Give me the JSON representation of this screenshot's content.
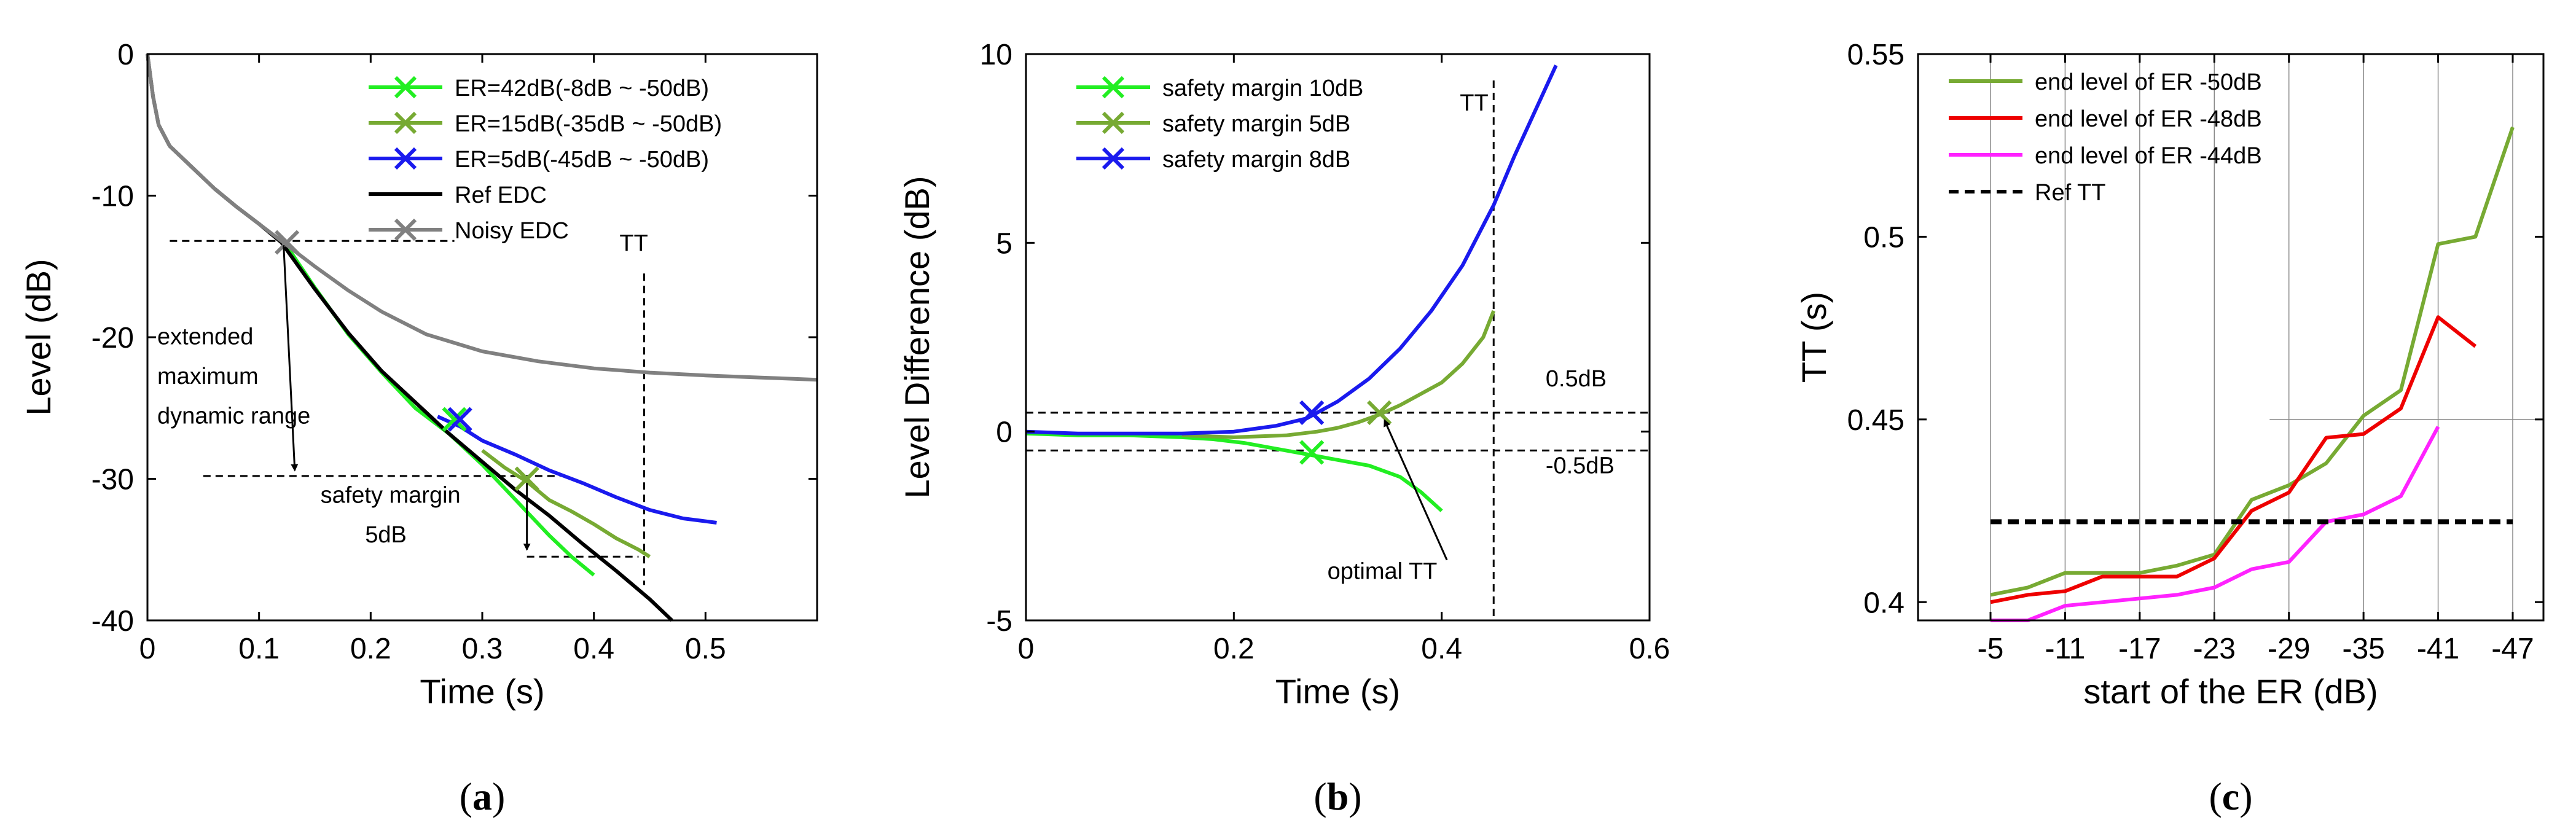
{
  "chart_data": [
    {
      "panel": "(a)",
      "panel_letter": "a",
      "type": "line",
      "xlabel": "Time (s)",
      "ylabel": "Level (dB)",
      "xlim": [
        0,
        0.6
      ],
      "ylim": [
        -40,
        0
      ],
      "xticks": [
        "0",
        "0.1",
        "0.2",
        "0.3",
        "0.4",
        "0.5"
      ],
      "xtick_values": [
        0,
        0.1,
        0.2,
        0.3,
        0.4,
        0.5
      ],
      "yticks": [
        "0",
        "-10",
        "-20",
        "-30",
        "-40"
      ],
      "ytick_values": [
        0,
        -10,
        -20,
        -30,
        -40
      ],
      "legend_position": "top-right",
      "series": [
        {
          "name": "ER=42dB(-8dB ~ -50dB)",
          "color": "#22ee22",
          "marker": "x",
          "x": [
            0.12,
            0.15,
            0.18,
            0.21,
            0.24,
            0.27,
            0.3,
            0.33,
            0.36,
            0.38,
            0.4
          ],
          "y": [
            -13,
            -16.5,
            -19.8,
            -22.5,
            -25,
            -26.8,
            -29,
            -31.5,
            -34,
            -35.5,
            -36.8
          ],
          "marker_at": [
            0.275,
            -25.8
          ]
        },
        {
          "name": "ER=15dB(-35dB ~ -50dB)",
          "color": "#77aa33",
          "marker": "x",
          "x": [
            0.3,
            0.32,
            0.34,
            0.36,
            0.38,
            0.4,
            0.42,
            0.44,
            0.45
          ],
          "y": [
            -28,
            -29.2,
            -30.2,
            -31.5,
            -32.3,
            -33.2,
            -34.2,
            -35,
            -35.5
          ],
          "marker_at": [
            0.34,
            -30
          ]
        },
        {
          "name": "ER=5dB(-45dB ~ -50dB)",
          "color": "#1a1aee",
          "marker": "x",
          "x": [
            0.26,
            0.28,
            0.3,
            0.33,
            0.36,
            0.39,
            0.42,
            0.45,
            0.48,
            0.5,
            0.51
          ],
          "y": [
            -25.6,
            -26.3,
            -27.3,
            -28.3,
            -29.4,
            -30.3,
            -31.3,
            -32.2,
            -32.8,
            -33,
            -33.1
          ],
          "marker_at": [
            0.28,
            -25.8
          ]
        },
        {
          "name": "Ref EDC",
          "color": "#000000",
          "marker": "",
          "x": [
            0,
            0.005,
            0.01,
            0.02,
            0.04,
            0.06,
            0.08,
            0.1,
            0.12,
            0.15,
            0.18,
            0.21,
            0.24,
            0.27,
            0.3,
            0.33,
            0.36,
            0.39,
            0.42,
            0.45,
            0.47
          ],
          "y": [
            0,
            -3,
            -5,
            -6.5,
            -8,
            -9.5,
            -10.8,
            -12,
            -13.3,
            -16.6,
            -19.7,
            -22.4,
            -24.6,
            -26.8,
            -28.8,
            -30.8,
            -32.6,
            -34.6,
            -36.5,
            -38.5,
            -40
          ]
        },
        {
          "name": "Noisy EDC",
          "color": "#808080",
          "marker": "x",
          "x": [
            0,
            0.005,
            0.01,
            0.02,
            0.04,
            0.06,
            0.08,
            0.1,
            0.12,
            0.15,
            0.18,
            0.21,
            0.25,
            0.3,
            0.35,
            0.4,
            0.45,
            0.5,
            0.55,
            0.6
          ],
          "y": [
            0,
            -3,
            -5,
            -6.5,
            -8,
            -9.5,
            -10.8,
            -12,
            -13.2,
            -15,
            -16.7,
            -18.2,
            -19.8,
            -21,
            -21.7,
            -22.2,
            -22.5,
            -22.7,
            -22.85,
            -23
          ],
          "marker_at": [
            0.125,
            -13.3
          ]
        }
      ],
      "annotations": {
        "tt_label": "TT",
        "range_label_1": "extended",
        "range_label_2": "maximum",
        "range_label_3": "dynamic range",
        "safety_label_1": "safety margin",
        "safety_label_2": "5dB"
      }
    },
    {
      "panel": "(b)",
      "panel_letter": "b",
      "type": "line",
      "xlabel": "Time (s)",
      "ylabel": "Level Difference (dB)",
      "xlim": [
        0,
        0.6
      ],
      "ylim": [
        -5,
        10
      ],
      "xticks": [
        "0",
        "0.2",
        "0.4",
        "0.6"
      ],
      "xtick_values": [
        0,
        0.2,
        0.4,
        0.6
      ],
      "yticks": [
        "10",
        "5",
        "0",
        "-5"
      ],
      "ytick_values": [
        10,
        5,
        0,
        -5
      ],
      "legend_position": "top-left",
      "series": [
        {
          "name": "safety margin 10dB",
          "color": "#22ee22",
          "marker": "x",
          "x": [
            0,
            0.05,
            0.1,
            0.15,
            0.18,
            0.21,
            0.24,
            0.27,
            0.3,
            0.33,
            0.36,
            0.38,
            0.4
          ],
          "y": [
            -0.05,
            -0.1,
            -0.1,
            -0.15,
            -0.2,
            -0.3,
            -0.45,
            -0.6,
            -0.75,
            -0.9,
            -1.2,
            -1.6,
            -2.1
          ],
          "marker_at": [
            0.275,
            -0.55
          ]
        },
        {
          "name": "safety margin 5dB",
          "color": "#77aa33",
          "marker": "x",
          "x": [
            0.15,
            0.2,
            0.25,
            0.28,
            0.3,
            0.32,
            0.34,
            0.36,
            0.38,
            0.4,
            0.42,
            0.44,
            0.45
          ],
          "y": [
            -0.1,
            -0.15,
            -0.1,
            0,
            0.1,
            0.25,
            0.45,
            0.7,
            1.0,
            1.3,
            1.8,
            2.5,
            3.2
          ],
          "marker_at": [
            0.34,
            0.5
          ]
        },
        {
          "name": "safety margin 8dB",
          "color": "#1a1aee",
          "marker": "x",
          "x": [
            0,
            0.05,
            0.1,
            0.15,
            0.2,
            0.24,
            0.27,
            0.3,
            0.33,
            0.36,
            0.39,
            0.42,
            0.45,
            0.47,
            0.49,
            0.51
          ],
          "y": [
            0,
            -0.05,
            -0.05,
            -0.05,
            0,
            0.15,
            0.35,
            0.8,
            1.4,
            2.2,
            3.2,
            4.4,
            6.0,
            7.3,
            8.5,
            9.7
          ],
          "marker_at": [
            0.275,
            0.5
          ]
        }
      ],
      "annotations": {
        "tt_label": "TT",
        "upper_line_label": "0.5dB",
        "lower_line_label": "-0.5dB",
        "optimal_label": "optimal TT"
      }
    },
    {
      "panel": "(c)",
      "panel_letter": "c",
      "type": "line",
      "xlabel": "start of the ER (dB)",
      "ylabel": "TT (s)",
      "ylim": [
        0.395,
        0.55
      ],
      "xticks": [
        "-5",
        "-11",
        "-17",
        "-23",
        "-29",
        "-35",
        "-41",
        "-47"
      ],
      "yticks": [
        "0.55",
        "0.5",
        "0.45",
        "0.4"
      ],
      "ytick_values": [
        0.55,
        0.5,
        0.45,
        0.4
      ],
      "legend_position": "top-left",
      "series": [
        {
          "name": "end level of ER -50dB",
          "color": "#77aa33",
          "x": [
            -5,
            -8,
            -11,
            -14,
            -17,
            -20,
            -23,
            -26,
            -29,
            -32,
            -35,
            -38,
            -41,
            -44,
            -47
          ],
          "y": [
            0.402,
            0.404,
            0.408,
            0.408,
            0.408,
            0.41,
            0.413,
            0.428,
            0.432,
            0.438,
            0.451,
            0.458,
            0.498,
            0.5,
            0.53
          ]
        },
        {
          "name": "end level of ER -48dB",
          "color": "#ee0000",
          "x": [
            -5,
            -8,
            -11,
            -14,
            -17,
            -20,
            -23,
            -26,
            -29,
            -32,
            -35,
            -38,
            -41,
            -44
          ],
          "y": [
            0.4,
            0.402,
            0.403,
            0.407,
            0.407,
            0.407,
            0.412,
            0.425,
            0.43,
            0.445,
            0.446,
            0.453,
            0.478,
            0.47
          ]
        },
        {
          "name": "end level of ER -44dB",
          "color": "#ff22ff",
          "x": [
            -5,
            -8,
            -11,
            -14,
            -17,
            -20,
            -23,
            -26,
            -29,
            -32,
            -35,
            -38,
            -41
          ],
          "y": [
            0.395,
            0.395,
            0.399,
            0.4,
            0.401,
            0.402,
            0.404,
            0.409,
            0.411,
            0.422,
            0.424,
            0.429,
            0.448
          ]
        },
        {
          "name": "Ref TT",
          "color": "#000000",
          "dashed": true,
          "x": [
            -5,
            -47
          ],
          "y": [
            0.422,
            0.422
          ]
        }
      ]
    }
  ]
}
